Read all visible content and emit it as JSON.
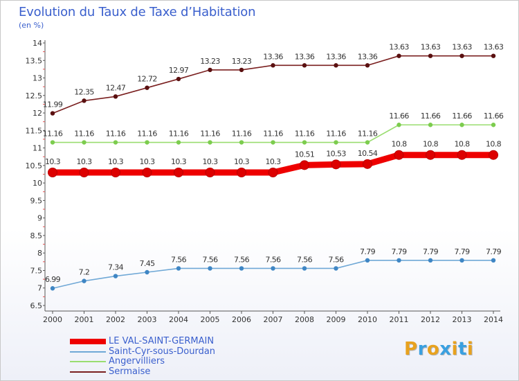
{
  "header": {
    "title": "Evolution du Taux de Taxe d’Habitation",
    "unit": "(en %)"
  },
  "logo": {
    "text": "Proxiti",
    "letter_colors": [
      "#e8a21e",
      "#3aa0e0",
      "#e8a21e",
      "#3aa0e0",
      "#e8a21e",
      "#3aa0e0",
      "#e8a21e"
    ]
  },
  "chart_data": {
    "type": "line",
    "title": "Evolution du Taux de Taxe d’Habitation",
    "ylabel": "(en %)",
    "xlabel": "",
    "x": [
      "2000",
      "2001",
      "2002",
      "2003",
      "2004",
      "2005",
      "2006",
      "2007",
      "2008",
      "2009",
      "2010",
      "2011",
      "2012",
      "2013",
      "2014"
    ],
    "ylim": [
      6.5,
      14
    ],
    "yticks": [
      "6.5",
      "7",
      "7.5",
      "8",
      "8.5",
      "9",
      "9.5",
      "10",
      "10.5",
      "11",
      "11.5",
      "12",
      "12.5",
      "13",
      "13.5",
      "14"
    ],
    "grid": false,
    "legend_position": "bottom-left",
    "series": [
      {
        "name": "Sermaise",
        "color": "#7a1f1f",
        "marker_color": "#5a1010",
        "values": [
          11.99,
          12.35,
          12.47,
          12.72,
          12.97,
          13.23,
          13.23,
          13.36,
          13.36,
          13.36,
          13.36,
          13.63,
          13.63,
          13.63,
          13.63
        ],
        "labels": [
          "11.99",
          "12.35",
          "12.47",
          "12.72",
          "12.97",
          "13.23",
          "13.23",
          "13.36",
          "13.36",
          "13.36",
          "13.36",
          "13.63",
          "13.63",
          "13.63",
          "13.63"
        ]
      },
      {
        "name": "Angervilliers",
        "color": "#99dd6f",
        "marker_color": "#7ccc4e",
        "values": [
          11.16,
          11.16,
          11.16,
          11.16,
          11.16,
          11.16,
          11.16,
          11.16,
          11.16,
          11.16,
          11.16,
          11.66,
          11.66,
          11.66,
          11.66
        ],
        "labels": [
          "11.16",
          "11.16",
          "11.16",
          "11.16",
          "11.16",
          "11.16",
          "11.16",
          "11.16",
          "11.16",
          "11.16",
          "11.16",
          "11.66",
          "11.66",
          "11.66",
          "11.66"
        ]
      },
      {
        "name": "LE VAL-SAINT-GERMAIN",
        "color": "#ee0000",
        "marker_color": "#dd0000",
        "emphasis": true,
        "values": [
          10.3,
          10.3,
          10.3,
          10.3,
          10.3,
          10.3,
          10.3,
          10.3,
          10.51,
          10.53,
          10.54,
          10.8,
          10.8,
          10.8,
          10.8
        ],
        "labels": [
          "10.3",
          "10.3",
          "10.3",
          "10.3",
          "10.3",
          "10.3",
          "10.3",
          "10.3",
          "10.51",
          "10.53",
          "10.54",
          "10.8",
          "10.8",
          "10.8",
          "10.8"
        ]
      },
      {
        "name": "Saint-Cyr-sous-Dourdan",
        "color": "#6fa8d6",
        "marker_color": "#3f86c4",
        "values": [
          6.99,
          7.2,
          7.34,
          7.45,
          7.56,
          7.56,
          7.56,
          7.56,
          7.56,
          7.56,
          7.79,
          7.79,
          7.79,
          7.79,
          7.79
        ],
        "labels": [
          "6.99",
          "7.2",
          "7.34",
          "7.45",
          "7.56",
          "7.56",
          "7.56",
          "7.56",
          "7.56",
          "7.56",
          "7.79",
          "7.79",
          "7.79",
          "7.79",
          "7.79"
        ]
      }
    ],
    "legend_order": [
      "LE VAL-SAINT-GERMAIN",
      "Saint-Cyr-sous-Dourdan",
      "Angervilliers",
      "Sermaise"
    ]
  }
}
